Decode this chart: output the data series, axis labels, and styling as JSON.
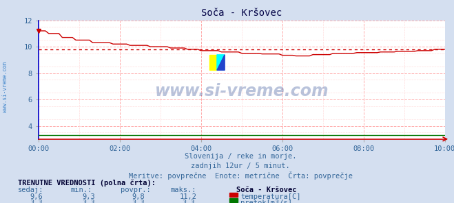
{
  "title": "Soča - Kršovec",
  "bg_color": "#d4dff0",
  "plot_bg_color": "#ffffff",
  "grid_color_major": "#ffaaaa",
  "grid_color_minor": "#ffdddd",
  "xlabel_ticks": [
    "00:00",
    "02:00",
    "04:00",
    "06:00",
    "08:00",
    "10:00"
  ],
  "x_tick_positions": [
    0,
    24,
    48,
    72,
    96,
    120
  ],
  "x_total": 120,
  "ylim": [
    3.0,
    12.0
  ],
  "yticks": [
    4,
    6,
    8,
    10,
    12
  ],
  "temp_color": "#cc0000",
  "pretok_color": "#007700",
  "avg_line_color": "#cc0000",
  "avg_value": 9.8,
  "pretok_value": 3.3,
  "watermark_text": "www.si-vreme.com",
  "watermark_color": "#1a3a8a",
  "watermark_alpha": 0.3,
  "footer_line1": "Slovenija / reke in morje.",
  "footer_line2": "zadnjih 12ur / 5 minut.",
  "footer_line3": "Meritve: povprečne  Enote: metrične  Črta: povprečje",
  "footer_color": "#336699",
  "table_header": "TRENUTNE VREDNOSTI (polna črta):",
  "table_cols": [
    "sedaj:",
    "min.:",
    "povpr.:",
    "maks.:"
  ],
  "table_row1": [
    "9,6",
    "9,3",
    "9,8",
    "11,2"
  ],
  "table_row2": [
    "3,3",
    "3,3",
    "3,3",
    "3,3"
  ],
  "label_temp": "temperatura[C]",
  "label_pretok": "pretok[m3/s]",
  "station_label": "Soča - Kršovec",
  "sidebar_text": "www.si-vreme.com",
  "sidebar_color": "#4488cc",
  "left_spine_color": "#0000cc",
  "bottom_spine_color": "#cc0000",
  "axis_label_color": "#336699"
}
